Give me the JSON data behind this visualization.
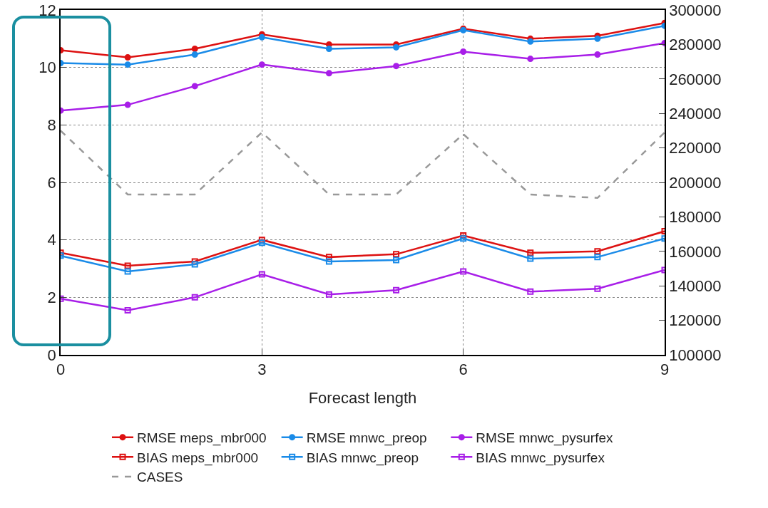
{
  "chart_data": {
    "type": "line",
    "xlabel": "Forecast length",
    "x": [
      0,
      1,
      2,
      3,
      4,
      5,
      6,
      7,
      8,
      9
    ],
    "xlim": [
      0,
      9
    ],
    "xticks": [
      0,
      3,
      6,
      9
    ],
    "ylim": [
      0,
      12
    ],
    "yticks": [
      0,
      2,
      4,
      6,
      8,
      10,
      12
    ],
    "y2lim": [
      100000,
      300000
    ],
    "y2ticks": [
      100000,
      120000,
      140000,
      160000,
      180000,
      200000,
      220000,
      240000,
      260000,
      280000,
      300000
    ],
    "grid": true,
    "legend": "bottom",
    "series": [
      {
        "name": "RMSE meps_mbr000",
        "color": "#dd1111",
        "marker": "circle",
        "line_style": "solid",
        "values": [
          10.6,
          10.35,
          10.65,
          11.15,
          10.8,
          10.8,
          11.35,
          11.0,
          11.1,
          11.55
        ]
      },
      {
        "name": "RMSE mnwc_preop",
        "color": "#1a8be8",
        "marker": "circle",
        "line_style": "solid",
        "values": [
          10.15,
          10.1,
          10.45,
          11.05,
          10.65,
          10.7,
          11.3,
          10.9,
          11.0,
          11.45
        ]
      },
      {
        "name": "RMSE mnwc_pysurfex",
        "color": "#a81ee8",
        "marker": "circle",
        "line_style": "solid",
        "values": [
          8.5,
          8.7,
          9.35,
          10.1,
          9.8,
          10.05,
          10.55,
          10.3,
          10.45,
          10.85
        ]
      },
      {
        "name": "BIAS meps_mbr000",
        "color": "#dd1111",
        "marker": "square",
        "line_style": "solid",
        "values": [
          3.55,
          3.1,
          3.25,
          4.0,
          3.4,
          3.5,
          4.15,
          3.55,
          3.6,
          4.3
        ]
      },
      {
        "name": "BIAS mnwc_preop",
        "color": "#1a8be8",
        "marker": "square",
        "line_style": "solid",
        "values": [
          3.45,
          2.9,
          3.15,
          3.9,
          3.25,
          3.3,
          4.05,
          3.35,
          3.4,
          4.05
        ]
      },
      {
        "name": "BIAS mnwc_pysurfex",
        "color": "#a81ee8",
        "marker": "square",
        "line_style": "solid",
        "values": [
          1.95,
          1.55,
          2.0,
          2.8,
          2.1,
          2.25,
          2.9,
          2.2,
          2.3,
          2.95
        ]
      },
      {
        "name": "CASES",
        "color": "#999999",
        "marker": "none",
        "line_style": "dashed",
        "axis": "y2",
        "values": [
          230000,
          193000,
          193000,
          229000,
          193000,
          193000,
          228000,
          193000,
          191000,
          229000
        ]
      }
    ]
  }
}
